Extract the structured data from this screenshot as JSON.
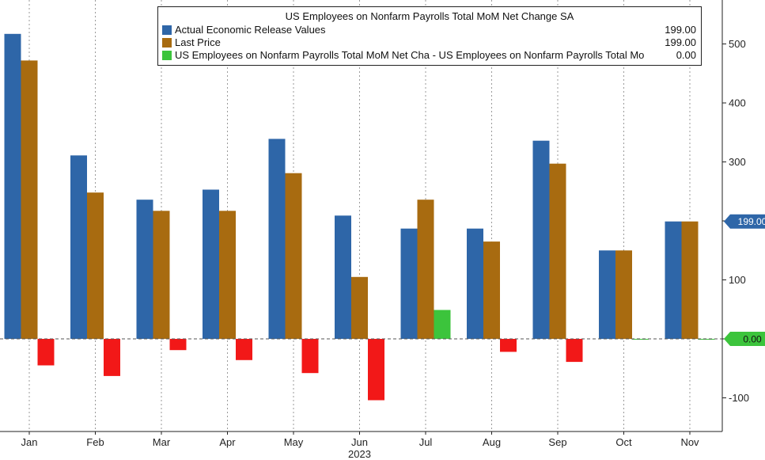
{
  "chart_data": {
    "type": "bar",
    "title": "US Employees on Nonfarm Payrolls Total MoM Net Change SA",
    "categories": [
      "Jan",
      "Feb",
      "Mar",
      "Apr",
      "May",
      "Jun",
      "Jul",
      "Aug",
      "Sep",
      "Oct",
      "Nov"
    ],
    "year_label": "2023",
    "ylim": [
      -160,
      570
    ],
    "yticks": [
      -100,
      0,
      100,
      200,
      300,
      400,
      500
    ],
    "grid": "vertical dashed",
    "legend_position": "top",
    "series": [
      {
        "name": "Actual Economic Release Values",
        "color": "#2e66a8",
        "legend_value": "199.00",
        "values": [
          517,
          311,
          236,
          253,
          339,
          209,
          187,
          187,
          336,
          150,
          199
        ]
      },
      {
        "name": "Last Price",
        "color": "#a86b10",
        "legend_value": "199.00",
        "values": [
          472,
          248,
          217,
          217,
          281,
          105,
          236,
          165,
          297,
          150,
          199
        ]
      },
      {
        "name": "US Employees on Nonfarm Payrolls Total MoM Net Cha - US Employees on Nonfarm Payrolls Total Mo",
        "color_pos": "#3cc43c",
        "color_neg": "#f21818",
        "legend_value": "0.00",
        "values": [
          -45,
          -63,
          -19,
          -36,
          -58,
          -104,
          49,
          -22,
          -39,
          0,
          0
        ]
      }
    ],
    "badges": [
      {
        "value": 199,
        "text": "199.00",
        "color": "#2e66a8"
      },
      {
        "value": 0,
        "text": "0.00",
        "color": "#3cc43c"
      }
    ]
  }
}
